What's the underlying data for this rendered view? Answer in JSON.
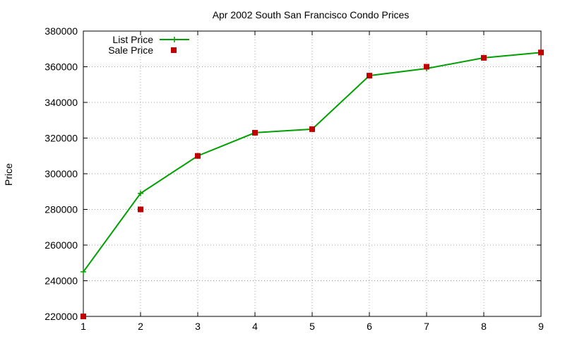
{
  "chart_data": {
    "type": "line",
    "title": "Apr 2002 South San Francisco Condo Prices",
    "xlabel": "",
    "ylabel": "Price",
    "x": [
      1,
      2,
      3,
      4,
      5,
      6,
      7,
      8,
      9
    ],
    "xlim": [
      1,
      9
    ],
    "ylim": [
      220000,
      380000
    ],
    "xticks": [
      "1",
      "2",
      "3",
      "4",
      "5",
      "6",
      "7",
      "8",
      "9"
    ],
    "yticks": [
      "220000",
      "240000",
      "260000",
      "280000",
      "300000",
      "320000",
      "340000",
      "360000",
      "380000"
    ],
    "grid": true,
    "legend_position": "top-left",
    "series": [
      {
        "name": "List Price",
        "style": "line-with-plus-markers",
        "color": "#00a000",
        "values": [
          245000,
          289000,
          310000,
          323000,
          325000,
          355000,
          359000,
          365000,
          368000
        ]
      },
      {
        "name": "Sale Price",
        "style": "square-markers",
        "color": "#c00000",
        "values": [
          220000,
          280000,
          310000,
          323000,
          325000,
          355000,
          360000,
          365000,
          368000
        ]
      }
    ]
  }
}
